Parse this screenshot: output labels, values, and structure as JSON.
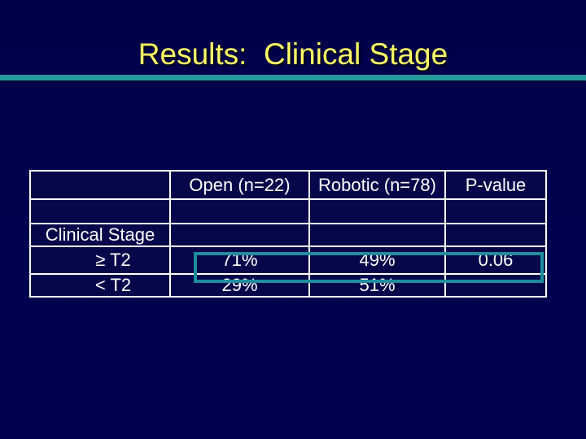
{
  "slide": {
    "title": "Results:  Clinical Stage",
    "colors": {
      "background_navy": "#000050",
      "title_yellow": "#ffff66",
      "divider_teal": "#239a9c",
      "highlight_teal": "#1e8e9e",
      "table_border_white": "#ffffff",
      "cell_navy": "#06064a",
      "table_text_white": "#ffffff"
    }
  },
  "table": {
    "columns": [
      "",
      "Open (n=22)",
      "Robotic (n=78)",
      "P-value"
    ],
    "rows": [
      {
        "cells": [
          "",
          "",
          "",
          ""
        ]
      },
      {
        "cells": [
          "Clinical Stage",
          "",
          "",
          ""
        ]
      },
      {
        "cells": [
          "≥ T2",
          "71%",
          "49%",
          "0.06"
        ],
        "highlighted": true
      },
      {
        "cells": [
          "< T2",
          "29%",
          "51%",
          ""
        ]
      }
    ]
  }
}
